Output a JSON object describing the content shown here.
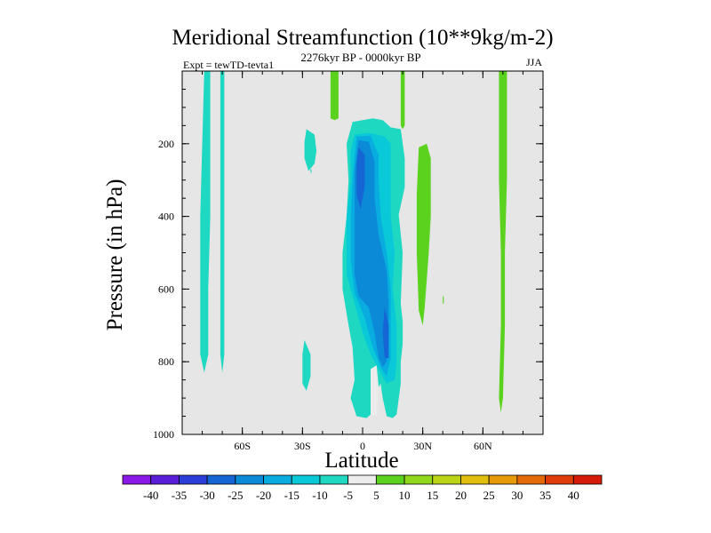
{
  "chart_data": {
    "type": "filled-contour",
    "title": "Meridional Streamfunction (10**9kg/m-2)",
    "subtitle": "2276kyr BP - 0000kyr BP",
    "left_label": "Expt = tewTD-tevta1",
    "right_label": "JJA",
    "xlabel": "Latitude",
    "ylabel": "Pressure (in hPa)",
    "xlim": [
      -90,
      90
    ],
    "ylim": [
      1000,
      0
    ],
    "x_ticks": [
      {
        "value": -60,
        "label": "60S"
      },
      {
        "value": -30,
        "label": "30S"
      },
      {
        "value": 0,
        "label": "0"
      },
      {
        "value": 30,
        "label": "30N"
      },
      {
        "value": 60,
        "label": "60N"
      }
    ],
    "y_ticks": [
      {
        "value": 200,
        "label": "200"
      },
      {
        "value": 400,
        "label": "400"
      },
      {
        "value": 600,
        "label": "600"
      },
      {
        "value": 800,
        "label": "800"
      },
      {
        "value": 1000,
        "label": "1000"
      }
    ],
    "background_color": "#e6e6e6",
    "colorbar": {
      "labels": [
        "-40",
        "-35",
        "-30",
        "-25",
        "-20",
        "-15",
        "-10",
        "-5",
        "5",
        "10",
        "15",
        "20",
        "25",
        "30",
        "35",
        "40"
      ],
      "colors": [
        "#8a18e6",
        "#5a1ed8",
        "#2b3fd8",
        "#1565d5",
        "#0b8ad8",
        "#08acde",
        "#09c8d8",
        "#1fd8c2",
        "#ececec",
        "#5ad21e",
        "#8fd81b",
        "#bcd416",
        "#e0c00c",
        "#e69a08",
        "#e46a08",
        "#e03c0a",
        "#d61a08"
      ]
    },
    "regions": [
      {
        "level": -10,
        "color": "#1fd8c2",
        "points": [
          [
            -78,
            0
          ],
          [
            -76,
            0
          ],
          [
            -76,
            400
          ],
          [
            -77,
            600
          ],
          [
            -77,
            780
          ],
          [
            -79,
            830
          ],
          [
            -81,
            780
          ],
          [
            -81,
            400
          ],
          [
            -79,
            0
          ]
        ]
      },
      {
        "level": -10,
        "color": "#1fd8c2",
        "points": [
          [
            -70,
            0
          ],
          [
            -69,
            0
          ],
          [
            -69,
            500
          ],
          [
            -69,
            780
          ],
          [
            -70,
            830
          ],
          [
            -71,
            780
          ],
          [
            -71,
            0
          ]
        ]
      },
      {
        "level": -10,
        "color": "#1fd8c2",
        "points": [
          [
            -28,
            160
          ],
          [
            -24,
            175
          ],
          [
            -23,
            220
          ],
          [
            -24,
            255
          ],
          [
            -27,
            275
          ],
          [
            -29,
            240
          ],
          [
            -29,
            195
          ]
        ]
      },
      {
        "level": -10,
        "color": "#1fd8c2",
        "points": [
          [
            -29,
            740
          ],
          [
            -26,
            780
          ],
          [
            -26,
            840
          ],
          [
            -28,
            880
          ],
          [
            -30,
            860
          ],
          [
            -30,
            780
          ]
        ]
      },
      {
        "level": -10,
        "color": "#1fd8c2",
        "points": [
          [
            -5,
            140
          ],
          [
            5,
            130
          ],
          [
            10,
            135
          ],
          [
            14,
            155
          ],
          [
            19,
            160
          ],
          [
            21,
            240
          ],
          [
            21,
            320
          ],
          [
            18,
            395
          ],
          [
            20,
            500
          ],
          [
            19,
            640
          ],
          [
            20,
            690
          ],
          [
            20,
            750
          ],
          [
            19,
            800
          ],
          [
            19,
            860
          ],
          [
            17,
            945
          ],
          [
            15,
            955
          ],
          [
            12,
            950
          ],
          [
            10,
            900
          ],
          [
            9,
            860
          ],
          [
            7,
            880
          ],
          [
            5,
            940
          ],
          [
            2,
            955
          ],
          [
            -3,
            950
          ],
          [
            -6,
            900
          ],
          [
            -4,
            850
          ],
          [
            -5,
            760
          ],
          [
            -7,
            700
          ],
          [
            -10,
            600
          ],
          [
            -10,
            500
          ],
          [
            -8,
            400
          ],
          [
            -7,
            300
          ],
          [
            -8,
            200
          ]
        ]
      },
      {
        "level": -15,
        "color": "#09c8d8",
        "points": [
          [
            -4,
            175
          ],
          [
            3,
            170
          ],
          [
            11,
            180
          ],
          [
            14,
            200
          ],
          [
            14,
            300
          ],
          [
            14,
            400
          ],
          [
            16,
            500
          ],
          [
            15,
            600
          ],
          [
            17,
            700
          ],
          [
            17,
            800
          ],
          [
            16,
            850
          ],
          [
            12,
            860
          ],
          [
            8,
            820
          ],
          [
            4,
            780
          ],
          [
            0,
            720
          ],
          [
            -4,
            640
          ],
          [
            -8,
            560
          ],
          [
            -8,
            400
          ],
          [
            -6,
            300
          ],
          [
            -6,
            220
          ]
        ]
      },
      {
        "level": -20,
        "color": "#08acde",
        "points": [
          [
            -3,
            180
          ],
          [
            4,
            178
          ],
          [
            8,
            230
          ],
          [
            8,
            300
          ],
          [
            9,
            400
          ],
          [
            12,
            500
          ],
          [
            14,
            600
          ],
          [
            14,
            700
          ],
          [
            14,
            790
          ],
          [
            12,
            840
          ],
          [
            9,
            815
          ],
          [
            5,
            760
          ],
          [
            1,
            680
          ],
          [
            -4,
            610
          ],
          [
            -6,
            520
          ],
          [
            -6,
            400
          ],
          [
            -5,
            300
          ],
          [
            -4,
            230
          ]
        ]
      },
      {
        "level": -25,
        "color": "#0b8ad8",
        "points": [
          [
            -2,
            190
          ],
          [
            3,
            195
          ],
          [
            6,
            250
          ],
          [
            6,
            350
          ],
          [
            8,
            450
          ],
          [
            12,
            550
          ],
          [
            13,
            640
          ],
          [
            13,
            730
          ],
          [
            12,
            800
          ],
          [
            10,
            815
          ],
          [
            8,
            790
          ],
          [
            6,
            720
          ],
          [
            3,
            650
          ],
          [
            -2,
            620
          ],
          [
            -4,
            560
          ],
          [
            -4,
            400
          ],
          [
            -4,
            280
          ],
          [
            -3,
            230
          ]
        ]
      },
      {
        "level": -30,
        "color": "#1565d5",
        "points": [
          [
            -2,
            210
          ],
          [
            1,
            230
          ],
          [
            1,
            320
          ],
          [
            -1,
            380
          ],
          [
            -3,
            340
          ],
          [
            -3,
            260
          ]
        ]
      },
      {
        "level": -30,
        "color": "#1565d5",
        "points": [
          [
            11,
            650
          ],
          [
            13,
            700
          ],
          [
            13,
            790
          ],
          [
            11,
            790
          ],
          [
            10,
            720
          ]
        ]
      },
      {
        "level": -5,
        "color": "#ececec",
        "points": [
          [
            4,
            820
          ],
          [
            7,
            810
          ],
          [
            8,
            870
          ],
          [
            7,
            950
          ],
          [
            4,
            945
          ]
        ]
      },
      {
        "level": 5,
        "color": "#5ad21e",
        "points": [
          [
            -16,
            0
          ],
          [
            -12,
            0
          ],
          [
            -12,
            110
          ],
          [
            -12,
            130
          ],
          [
            -14,
            135
          ],
          [
            -16,
            130
          ],
          [
            -16,
            100
          ]
        ]
      },
      {
        "level": 5,
        "color": "#5ad21e",
        "points": [
          [
            19,
            0
          ],
          [
            21,
            0
          ],
          [
            21,
            150
          ],
          [
            20,
            160
          ],
          [
            19,
            150
          ]
        ]
      },
      {
        "level": 5,
        "color": "#5ad21e",
        "points": [
          [
            28,
            210
          ],
          [
            32,
            200
          ],
          [
            34,
            240
          ],
          [
            34,
            400
          ],
          [
            33,
            500
          ],
          [
            31,
            650
          ],
          [
            30,
            700
          ],
          [
            28,
            660
          ],
          [
            27,
            500
          ],
          [
            27,
            340
          ]
        ]
      },
      {
        "level": 5,
        "color": "#5ad21e",
        "points": [
          [
            68,
            0
          ],
          [
            72,
            0
          ],
          [
            72,
            300
          ],
          [
            71,
            500
          ],
          [
            71,
            700
          ],
          [
            70,
            900
          ],
          [
            69,
            940
          ],
          [
            68,
            900
          ],
          [
            69,
            700
          ],
          [
            69,
            500
          ],
          [
            68,
            300
          ]
        ]
      },
      {
        "level": 5,
        "color": "#5ad21e",
        "points": [
          [
            40,
            620
          ],
          [
            40.5,
            620
          ],
          [
            40.5,
            640
          ],
          [
            40,
            640
          ]
        ]
      },
      {
        "level": -10,
        "color": "#1fd8c2",
        "points": [
          [
            -26,
            270
          ],
          [
            -25.5,
            270
          ],
          [
            -25.5,
            280
          ],
          [
            -26,
            280
          ]
        ]
      }
    ]
  }
}
